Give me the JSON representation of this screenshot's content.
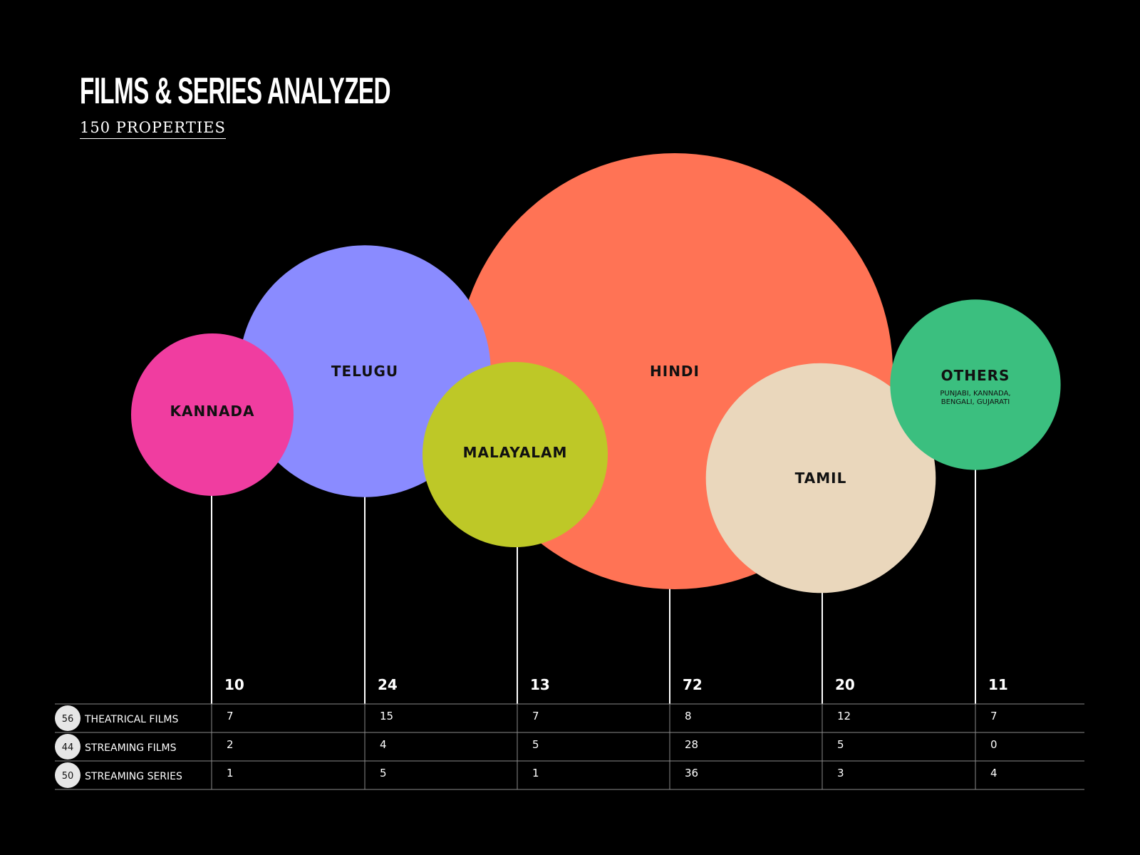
{
  "header": {
    "title": "FILMS & SERIES ANALYZED",
    "subtitle": "150 PROPERTIES"
  },
  "chart_data": {
    "type": "bubble",
    "bubbles": [
      {
        "name": "KANNADA",
        "total": 10,
        "color": "#F03DA0"
      },
      {
        "name": "TELUGU",
        "total": 24,
        "color": "#8A8BFF"
      },
      {
        "name": "MALAYALAM",
        "total": 13,
        "color": "#BEC827"
      },
      {
        "name": "HINDI",
        "total": 72,
        "color": "#FF7355"
      },
      {
        "name": "TAMIL",
        "total": 20,
        "color": "#EAD7BC"
      },
      {
        "name": "OTHERS",
        "sublabel": "PUNJABI, KANNADA, BENGALI, GUJARATI",
        "total": 11,
        "color": "#3BBF7F"
      }
    ],
    "table": {
      "rows": [
        {
          "label": "THEATRICAL FILMS",
          "total": 56,
          "values": [
            7,
            15,
            7,
            8,
            12,
            7
          ]
        },
        {
          "label": "STREAMING FILMS",
          "total": 44,
          "values": [
            2,
            4,
            5,
            28,
            5,
            0
          ]
        },
        {
          "label": "STREAMING SERIES",
          "total": 50,
          "values": [
            1,
            5,
            1,
            36,
            3,
            4
          ]
        }
      ]
    }
  }
}
